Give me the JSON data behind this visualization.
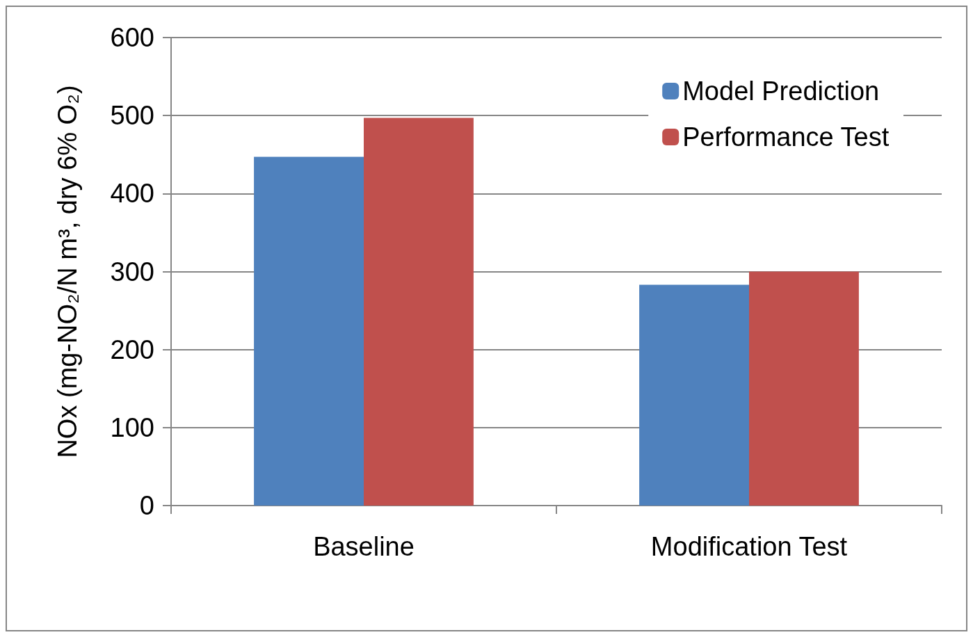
{
  "chart_data": {
    "type": "bar",
    "ylabel": "NOx (mg-NO₂/N m³, dry 6% O₂)",
    "categories": [
      "Baseline",
      "Modification Test"
    ],
    "series": [
      {
        "name": "Model Prediction",
        "color": "#4f81bd",
        "values": [
          447,
          283
        ]
      },
      {
        "name": "Performance Test",
        "color": "#c0504d",
        "values": [
          497,
          300
        ]
      }
    ],
    "ylim": [
      0,
      600
    ],
    "yticks": [
      0,
      100,
      200,
      300,
      400,
      500,
      600
    ],
    "grid": "y",
    "legend": "top right"
  }
}
